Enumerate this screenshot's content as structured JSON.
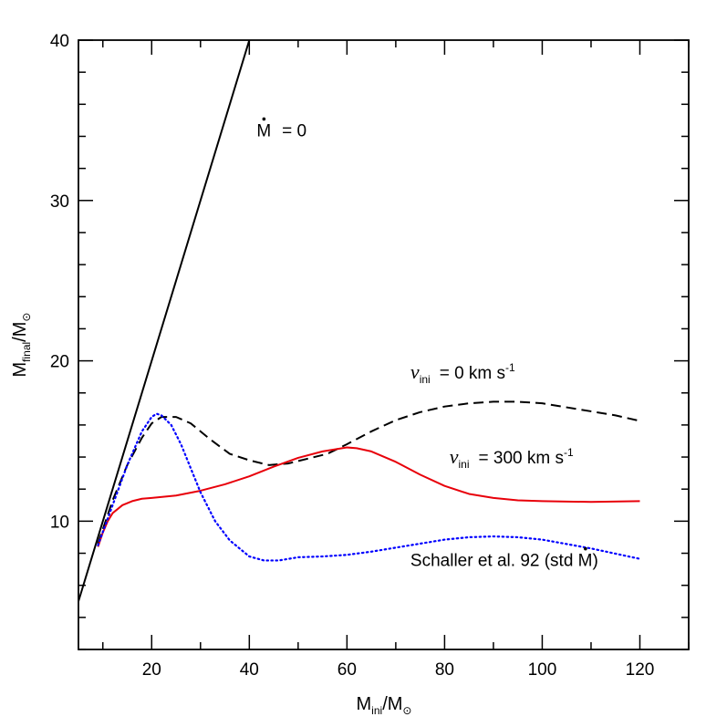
{
  "chart_data": {
    "type": "line",
    "title": "",
    "xlabel": {
      "main": "M",
      "sub": "ini",
      "sep": "/",
      "unit": "M",
      "unit_sub": "⊙"
    },
    "ylabel": {
      "main": "M",
      "sub": "final",
      "sep": "/",
      "unit": "M",
      "unit_sub": "⊙"
    },
    "xlim": [
      5,
      130
    ],
    "ylim": [
      2,
      40
    ],
    "xticks_major": [
      20,
      40,
      60,
      80,
      100,
      120
    ],
    "xtick_labels": [
      "20",
      "40",
      "60",
      "80",
      "100",
      "120"
    ],
    "yticks_major": [
      10,
      20,
      30,
      40
    ],
    "ytick_labels": [
      "10",
      "20",
      "30",
      "40"
    ],
    "xticks_minor_step": 10,
    "yticks_minor_step": 2,
    "grid": false,
    "series": [
      {
        "style": "solid",
        "color": "#000000",
        "x": [
          5,
          40
        ],
        "y": [
          5,
          40
        ]
      },
      {
        "style": "dashed",
        "color": "#000000",
        "x": [
          9,
          10,
          12,
          15,
          18,
          20,
          22,
          25,
          28,
          32,
          36,
          40,
          44,
          48,
          52,
          56,
          60,
          65,
          70,
          75,
          80,
          85,
          90,
          95,
          100,
          105,
          110,
          115,
          120
        ],
        "y": [
          8.6,
          9.5,
          11.3,
          13.5,
          15.2,
          16.1,
          16.5,
          16.5,
          16.1,
          15.1,
          14.2,
          13.8,
          13.5,
          13.6,
          13.9,
          14.2,
          14.8,
          15.6,
          16.3,
          16.8,
          17.15,
          17.35,
          17.45,
          17.45,
          17.35,
          17.1,
          16.85,
          16.6,
          16.25
        ]
      },
      {
        "style": "solid",
        "color": "#e8000a",
        "x": [
          9,
          10,
          11,
          12,
          14,
          16,
          18,
          20,
          25,
          30,
          35,
          40,
          45,
          50,
          55,
          60,
          62,
          65,
          70,
          75,
          80,
          85,
          90,
          95,
          100,
          110,
          120
        ],
        "y": [
          8.4,
          9.3,
          10.0,
          10.5,
          11.0,
          11.25,
          11.4,
          11.45,
          11.6,
          11.9,
          12.3,
          12.8,
          13.4,
          13.95,
          14.35,
          14.6,
          14.55,
          14.35,
          13.7,
          12.9,
          12.2,
          11.7,
          11.45,
          11.3,
          11.25,
          11.2,
          11.25
        ]
      },
      {
        "style": "dotted",
        "color": "#0000ff",
        "x": [
          9,
          12,
          15,
          18,
          20,
          21,
          22,
          24,
          26,
          28,
          30,
          33,
          36,
          40,
          43,
          46,
          50,
          55,
          60,
          65,
          70,
          75,
          80,
          85,
          90,
          95,
          100,
          110,
          120
        ],
        "y": [
          8.5,
          11.0,
          13.5,
          15.6,
          16.5,
          16.7,
          16.6,
          16.0,
          14.8,
          13.3,
          11.8,
          10.0,
          8.8,
          7.8,
          7.55,
          7.55,
          7.75,
          7.8,
          7.9,
          8.1,
          8.35,
          8.6,
          8.85,
          9.0,
          9.05,
          9.0,
          8.85,
          8.3,
          7.65
        ]
      }
    ],
    "annotations": [
      {
        "kind": "mdot",
        "text": "= 0",
        "symbol": "M",
        "x": 41.5,
        "y": 34.0
      },
      {
        "kind": "v",
        "symbol": "v",
        "sub": "ini",
        "text": "= 0 km s",
        "sup": "-1",
        "x": 73,
        "y": 18.9
      },
      {
        "kind": "v",
        "symbol": "v",
        "sub": "ini",
        "text": "= 300 km s",
        "sup": "-1",
        "x": 81,
        "y": 13.6
      },
      {
        "kind": "text",
        "text": "Schaller et al. 92 (std M)",
        "x": 73,
        "y": 7.2
      }
    ]
  }
}
